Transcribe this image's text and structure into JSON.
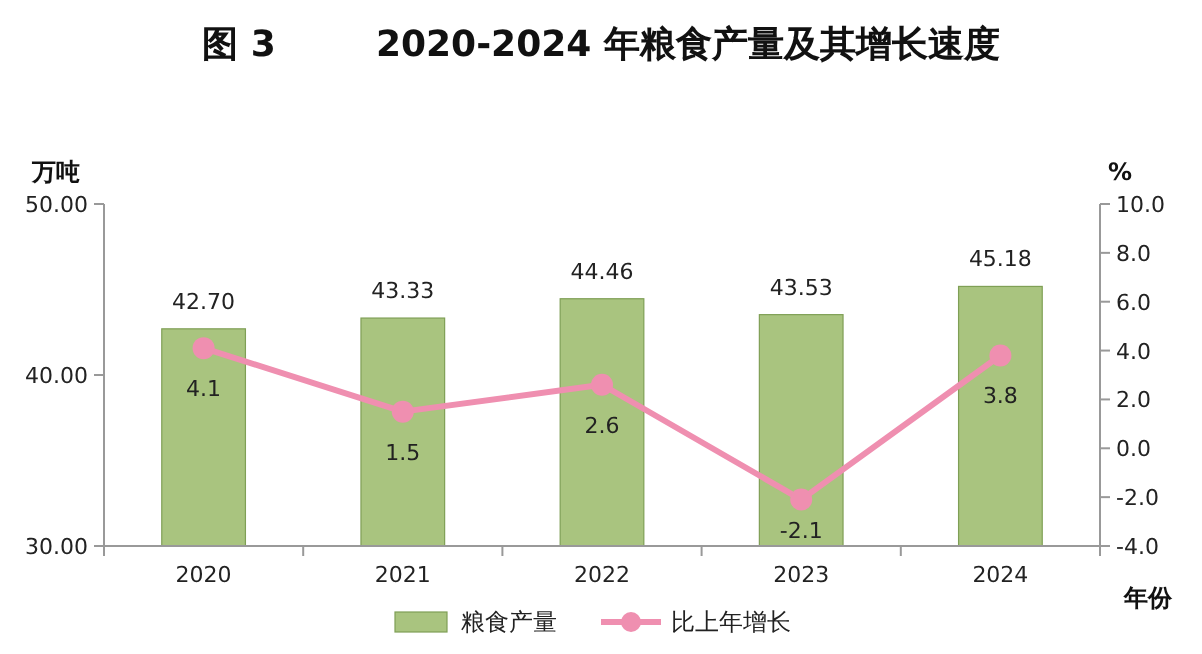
{
  "chart_data": {
    "type": "bar",
    "title": "图 3        2020-2024 年粮食产量及其增长速度",
    "ylabel": "万吨",
    "y2label": "%",
    "xlabel": "年份",
    "categories": [
      "2020",
      "2021",
      "2022",
      "2023",
      "2024"
    ],
    "series": [
      {
        "name": "粮食产量",
        "color": "#a9c47f",
        "values": [
          42.7,
          43.33,
          44.46,
          43.53,
          45.18
        ],
        "value_labels": [
          "42.70",
          "43.33",
          "44.46",
          "43.53",
          "45.18"
        ]
      },
      {
        "name": "比上年增长",
        "type": "line",
        "axis": "y2",
        "color": "#ef8fb0",
        "marker": "circle",
        "values": [
          4.1,
          1.5,
          2.6,
          -2.1,
          3.8
        ],
        "value_labels": [
          "4.1",
          "1.5",
          "2.6",
          "-2.1",
          "3.8"
        ]
      }
    ],
    "ylim": [
      30,
      50
    ],
    "yticks": [
      {
        "value": 30,
        "label": "30.00"
      },
      {
        "value": 40,
        "label": "40.00"
      },
      {
        "value": 50,
        "label": "50.00"
      }
    ],
    "y2lim": [
      -4,
      10
    ],
    "y2ticks": [
      {
        "value": -4,
        "label": "-4.0"
      },
      {
        "value": -2,
        "label": "-2.0"
      },
      {
        "value": 0,
        "label": "0.0"
      },
      {
        "value": 2,
        "label": "2.0"
      },
      {
        "value": 4,
        "label": "4.0"
      },
      {
        "value": 6,
        "label": "6.0"
      },
      {
        "value": 8,
        "label": "8.0"
      },
      {
        "value": 10,
        "label": "10.0"
      }
    ],
    "grid": false,
    "legend": "bottom"
  }
}
